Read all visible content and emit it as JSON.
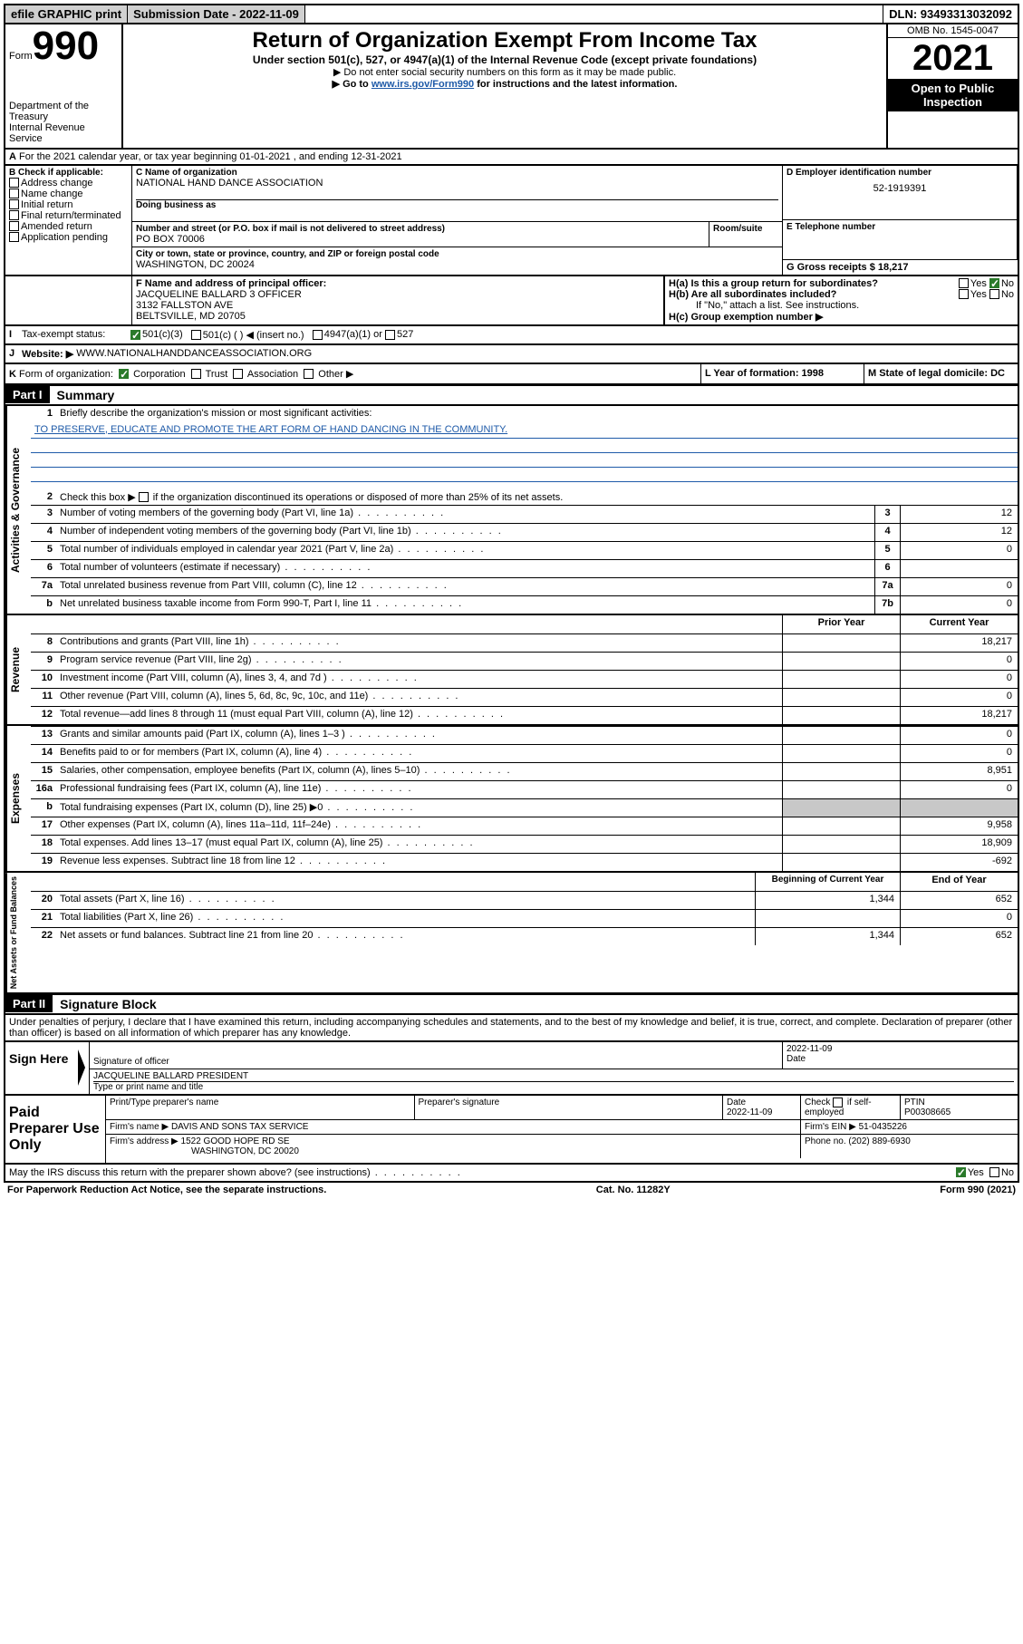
{
  "colors": {
    "link_blue": "#1e5aa8",
    "badge_bg": "#000000",
    "badge_fg": "#ffffff",
    "check_green": "#2a7a2a",
    "grey_fill": "#c8c8c8",
    "mission_blue": "#1e5aa8"
  },
  "topbar": {
    "efile": "efile GRAPHIC print",
    "sub_date_label": "Submission Date - 2022-11-09",
    "dln": "DLN: 93493313032092"
  },
  "header": {
    "form_word": "Form",
    "form_num": "990",
    "dept": "Department of the Treasury",
    "irs": "Internal Revenue Service",
    "title": "Return of Organization Exempt From Income Tax",
    "subtitle": "Under section 501(c), 527, or 4947(a)(1) of the Internal Revenue Code (except private foundations)",
    "instr1": "▶ Do not enter social security numbers on this form as it may be made public.",
    "instr2_pre": "▶ Go to ",
    "instr2_link": "www.irs.gov/Form990",
    "instr2_post": " for instructions and the latest information.",
    "omb": "OMB No. 1545-0047",
    "year": "2021",
    "badge": "Open to Public Inspection"
  },
  "sectionA": {
    "A_label": "A",
    "A_text": "For the 2021 calendar year, or tax year beginning 01-01-2021   , and ending 12-31-2021",
    "B_label": "B Check if applicable:",
    "B_items": [
      "Address change",
      "Name change",
      "Initial return",
      "Final return/terminated",
      "Amended return",
      "Application pending"
    ],
    "C_label": "C Name of organization",
    "C_name": "NATIONAL HAND DANCE ASSOCIATION",
    "C_dba_label": "Doing business as",
    "C_addr_label": "Number and street (or P.O. box if mail is not delivered to street address)",
    "C_room_label": "Room/suite",
    "C_addr": "PO BOX 70006",
    "C_city_label": "City or town, state or province, country, and ZIP or foreign postal code",
    "C_city": "WASHINGTON, DC  20024",
    "D_label": "D Employer identification number",
    "D_val": "52-1919391",
    "E_label": "E Telephone number",
    "G_label": "G Gross receipts $ 18,217",
    "F_label": "F  Name and address of principal officer:",
    "F_name": "JACQUELINE BALLARD 3 OFFICER",
    "F_addr1": "3132 FALLSTON AVE",
    "F_addr2": "BELTSVILLE, MD  20705",
    "Ha_label": "H(a)  Is this a group return for subordinates?",
    "Hb_label": "H(b)  Are all subordinates included?",
    "Hb_note": "If \"No,\" attach a list. See instructions.",
    "Hc_label": "H(c)  Group exemption number ▶",
    "yes": "Yes",
    "no": "No",
    "I_label": "I",
    "I_text": "Tax-exempt status:",
    "I_501c3": "501(c)(3)",
    "I_501c": "501(c) (  ) ◀ (insert no.)",
    "I_4947": "4947(a)(1) or",
    "I_527": "527",
    "J_label": "J",
    "J_text": "Website: ▶",
    "J_val": "WWW.NATIONALHANDDANCEASSOCIATION.ORG",
    "K_label": "K",
    "K_text": "Form of organization:",
    "K_corp": "Corporation",
    "K_trust": "Trust",
    "K_assoc": "Association",
    "K_other": "Other ▶",
    "L_label": "L Year of formation: 1998",
    "M_label": "M State of legal domicile: DC"
  },
  "part1": {
    "header": "Part I",
    "title": "Summary",
    "vert_gov": "Activities & Governance",
    "vert_rev": "Revenue",
    "vert_exp": "Expenses",
    "vert_net": "Net Assets or Fund Balances",
    "l1": "Briefly describe the organization's mission or most significant activities:",
    "l1_val": "TO PRESERVE, EDUCATE AND PROMOTE THE ART FORM OF HAND DANCING IN THE COMMUNITY.",
    "l2": "Check this box ▶",
    "l2b": " if the organization discontinued its operations or disposed of more than 25% of its net assets.",
    "rows_gov": [
      {
        "n": "3",
        "t": "Number of voting members of the governing body (Part VI, line 1a)",
        "box": "3",
        "v": "12"
      },
      {
        "n": "4",
        "t": "Number of independent voting members of the governing body (Part VI, line 1b)",
        "box": "4",
        "v": "12"
      },
      {
        "n": "5",
        "t": "Total number of individuals employed in calendar year 2021 (Part V, line 2a)",
        "box": "5",
        "v": "0"
      },
      {
        "n": "6",
        "t": "Total number of volunteers (estimate if necessary)",
        "box": "6",
        "v": ""
      },
      {
        "n": "7a",
        "t": "Total unrelated business revenue from Part VIII, column (C), line 12",
        "box": "7a",
        "v": "0"
      },
      {
        "n": "b",
        "t": "Net unrelated business taxable income from Form 990-T, Part I, line 11",
        "box": "7b",
        "v": "0"
      }
    ],
    "col_prior": "Prior Year",
    "col_curr": "Current Year",
    "rows_rev": [
      {
        "n": "8",
        "t": "Contributions and grants (Part VIII, line 1h)",
        "p": "",
        "c": "18,217"
      },
      {
        "n": "9",
        "t": "Program service revenue (Part VIII, line 2g)",
        "p": "",
        "c": "0"
      },
      {
        "n": "10",
        "t": "Investment income (Part VIII, column (A), lines 3, 4, and 7d )",
        "p": "",
        "c": "0"
      },
      {
        "n": "11",
        "t": "Other revenue (Part VIII, column (A), lines 5, 6d, 8c, 9c, 10c, and 11e)",
        "p": "",
        "c": "0"
      },
      {
        "n": "12",
        "t": "Total revenue—add lines 8 through 11 (must equal Part VIII, column (A), line 12)",
        "p": "",
        "c": "18,217"
      }
    ],
    "rows_exp": [
      {
        "n": "13",
        "t": "Grants and similar amounts paid (Part IX, column (A), lines 1–3 )",
        "p": "",
        "c": "0"
      },
      {
        "n": "14",
        "t": "Benefits paid to or for members (Part IX, column (A), line 4)",
        "p": "",
        "c": "0"
      },
      {
        "n": "15",
        "t": "Salaries, other compensation, employee benefits (Part IX, column (A), lines 5–10)",
        "p": "",
        "c": "8,951"
      },
      {
        "n": "16a",
        "t": "Professional fundraising fees (Part IX, column (A), line 11e)",
        "p": "",
        "c": "0"
      },
      {
        "n": "b",
        "t": "Total fundraising expenses (Part IX, column (D), line 25) ▶0",
        "p": "grey",
        "c": "grey"
      },
      {
        "n": "17",
        "t": "Other expenses (Part IX, column (A), lines 11a–11d, 11f–24e)",
        "p": "",
        "c": "9,958"
      },
      {
        "n": "18",
        "t": "Total expenses. Add lines 13–17 (must equal Part IX, column (A), line 25)",
        "p": "",
        "c": "18,909"
      },
      {
        "n": "19",
        "t": "Revenue less expenses. Subtract line 18 from line 12",
        "p": "",
        "c": "-692"
      }
    ],
    "col_beg": "Beginning of Current Year",
    "col_end": "End of Year",
    "rows_net": [
      {
        "n": "20",
        "t": "Total assets (Part X, line 16)",
        "p": "1,344",
        "c": "652"
      },
      {
        "n": "21",
        "t": "Total liabilities (Part X, line 26)",
        "p": "",
        "c": "0"
      },
      {
        "n": "22",
        "t": "Net assets or fund balances. Subtract line 21 from line 20",
        "p": "1,344",
        "c": "652"
      }
    ]
  },
  "part2": {
    "header": "Part II",
    "title": "Signature Block",
    "declaration": "Under penalties of perjury, I declare that I have examined this return, including accompanying schedules and statements, and to the best of my knowledge and belief, it is true, correct, and complete. Declaration of preparer (other than officer) is based on all information of which preparer has any knowledge.",
    "sign_here": "Sign Here",
    "sig_off_label": "Signature of officer",
    "sig_date_label": "Date",
    "sig_date": "2022-11-09",
    "officer_name": "JACQUELINE BALLARD  PRESIDENT",
    "officer_type_label": "Type or print name and title",
    "paid_label": "Paid Preparer Use Only",
    "p_name_label": "Print/Type preparer's name",
    "p_sig_label": "Preparer's signature",
    "p_date_label": "Date",
    "p_date": "2022-11-09",
    "p_check_label": "Check",
    "p_check_if": "if self-employed",
    "p_ptin_label": "PTIN",
    "p_ptin": "P00308665",
    "firm_name_label": "Firm's name    ▶",
    "firm_name": "DAVIS AND SONS TAX SERVICE",
    "firm_ein_label": "Firm's EIN ▶",
    "firm_ein": "51-0435226",
    "firm_addr_label": "Firm's address ▶",
    "firm_addr1": "1522 GOOD HOPE RD SE",
    "firm_addr2": "WASHINGTON, DC  20020",
    "phone_label": "Phone no.",
    "phone": "(202) 889-6930",
    "may_irs": "May the IRS discuss this return with the preparer shown above? (see instructions)"
  },
  "footer": {
    "paperwork": "For Paperwork Reduction Act Notice, see the separate instructions.",
    "cat": "Cat. No. 11282Y",
    "form": "Form 990 (2021)"
  }
}
